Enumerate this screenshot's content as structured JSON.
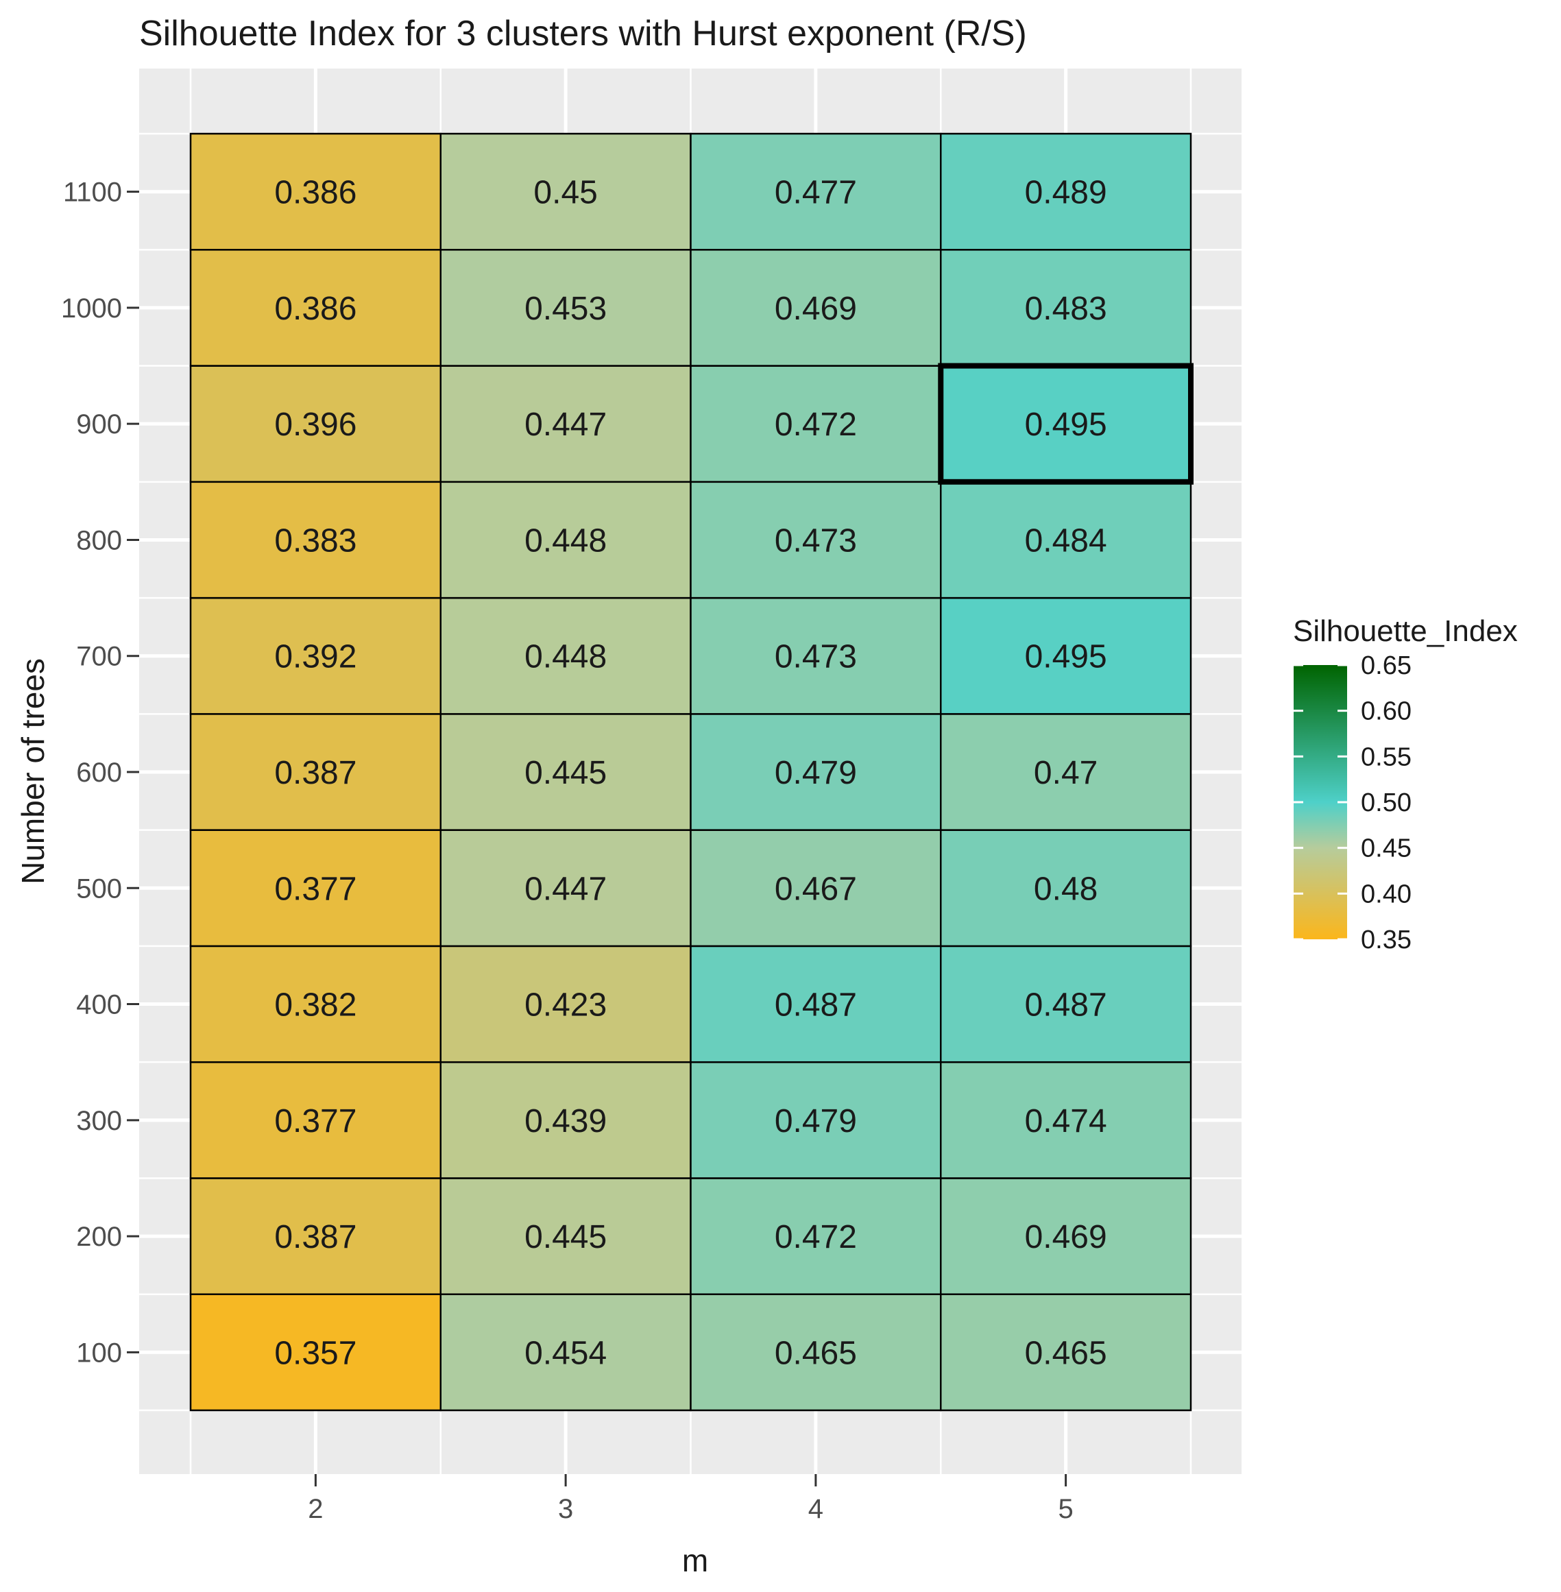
{
  "chart_data": {
    "type": "heatmap",
    "title": "Silhouette Index for 3 clusters with Hurst exponent (R/S)",
    "xlabel": "m",
    "ylabel": "Number of trees",
    "x_categories": [
      "2",
      "3",
      "4",
      "5"
    ],
    "y_categories": [
      "100",
      "200",
      "300",
      "400",
      "500",
      "600",
      "700",
      "800",
      "900",
      "1000",
      "1100"
    ],
    "values": {
      "100": [
        0.357,
        0.454,
        0.465,
        0.465
      ],
      "200": [
        0.387,
        0.445,
        0.472,
        0.469
      ],
      "300": [
        0.377,
        0.439,
        0.479,
        0.474
      ],
      "400": [
        0.382,
        0.423,
        0.487,
        0.487
      ],
      "500": [
        0.377,
        0.447,
        0.467,
        0.48
      ],
      "600": [
        0.387,
        0.445,
        0.479,
        0.47
      ],
      "700": [
        0.392,
        0.448,
        0.473,
        0.495
      ],
      "800": [
        0.383,
        0.448,
        0.473,
        0.484
      ],
      "900": [
        0.396,
        0.447,
        0.472,
        0.495
      ],
      "1000": [
        0.386,
        0.453,
        0.469,
        0.483
      ],
      "1100": [
        0.386,
        0.45,
        0.477,
        0.489
      ]
    },
    "highlighted_cell": {
      "m": "5",
      "trees": "900"
    },
    "legend": {
      "title": "Silhouette_Index",
      "range": [
        0.35,
        0.65
      ],
      "ticks": [
        "0.35",
        "0.40",
        "0.45",
        "0.50",
        "0.55",
        "0.60",
        "0.65"
      ],
      "gradient": [
        {
          "value": 0.35,
          "color": "#fbb61b"
        },
        {
          "value": 0.45,
          "color": "#b6cc9c"
        },
        {
          "value": 0.5,
          "color": "#4ed0c8"
        },
        {
          "value": 0.65,
          "color": "#006400"
        }
      ]
    },
    "colors": {
      "panel_background": "#ebebeb",
      "grid": "#ffffff",
      "cell_border": "#000000"
    }
  }
}
